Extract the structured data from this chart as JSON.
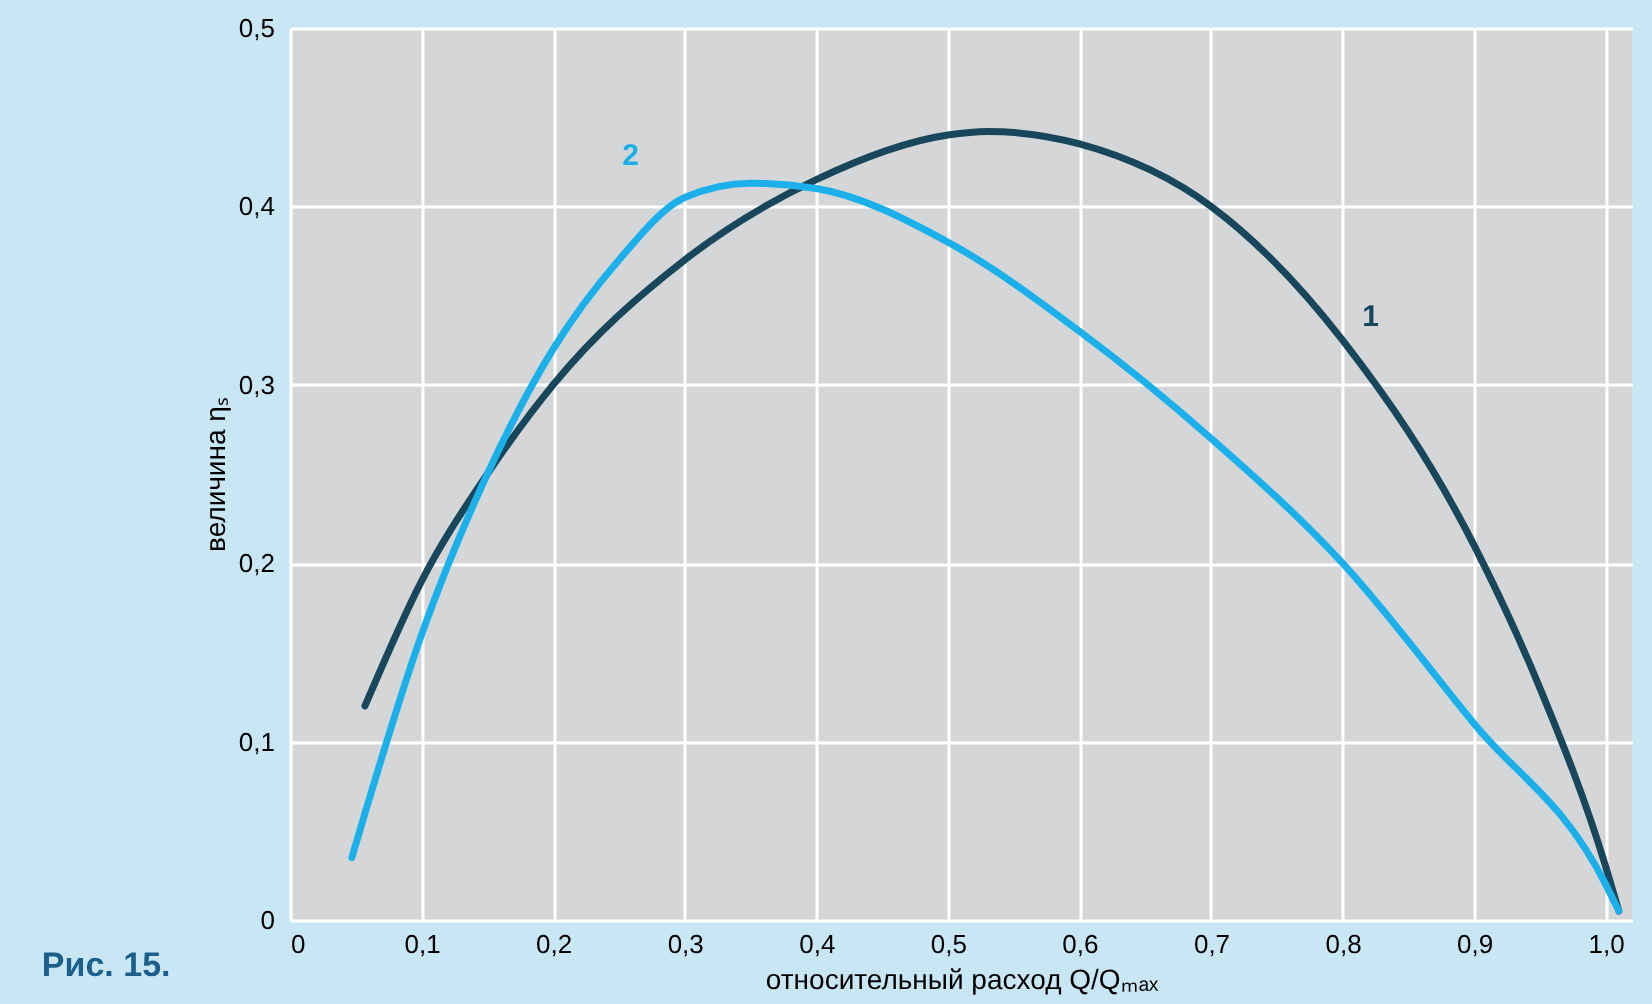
{
  "chart_data": {
    "type": "line",
    "title": "Рис. 15.",
    "xlabel": "относительный расход Q/Qₘₐₓ",
    "ylabel": "величина ηₛ",
    "series": [
      {
        "name": "1",
        "color": "#18475c",
        "x": [
          0.057,
          0.1,
          0.15,
          0.2,
          0.3,
          0.4,
          0.5,
          0.53,
          0.6,
          0.7,
          0.8,
          0.9,
          0.95,
          1.0,
          1.01
        ],
        "values": [
          0.12,
          0.19,
          0.25,
          0.3,
          0.37,
          0.415,
          0.44,
          0.442,
          0.435,
          0.4,
          0.325,
          0.21,
          0.13,
          0.03,
          0.005
        ]
      },
      {
        "name": "2",
        "color": "#1cb0ea",
        "x": [
          0.047,
          0.1,
          0.15,
          0.2,
          0.25,
          0.3,
          0.35,
          0.4,
          0.5,
          0.6,
          0.7,
          0.8,
          0.9,
          1.0,
          1.01
        ],
        "values": [
          0.035,
          0.16,
          0.25,
          0.32,
          0.37,
          0.405,
          0.413,
          0.41,
          0.38,
          0.33,
          0.27,
          0.2,
          0.11,
          0.02,
          0.005
        ]
      }
    ],
    "xlim": [
      0,
      1.02
    ],
    "ylim": [
      0,
      0.5
    ],
    "xticks": [
      0,
      {
        "value": 0.1,
        "label": "0,1"
      },
      {
        "value": 0.2,
        "label": "0,2"
      },
      {
        "value": 0.3,
        "label": "0,3"
      },
      {
        "value": 0.4,
        "label": "0,4"
      },
      {
        "value": 0.5,
        "label": "0,5"
      },
      {
        "value": 0.6,
        "label": "0,6"
      },
      {
        "value": 0.7,
        "label": "0,7"
      },
      {
        "value": 0.8,
        "label": "0,8"
      },
      {
        "value": 0.9,
        "label": "0,9"
      },
      {
        "value": 1.0,
        "label": "1,0"
      }
    ],
    "yticks": [
      0,
      {
        "value": 0.1,
        "label": "0,1"
      },
      {
        "value": 0.2,
        "label": "0,2"
      },
      {
        "value": 0.3,
        "label": "0,3"
      },
      {
        "value": 0.4,
        "label": "0,4"
      },
      {
        "value": 0.5,
        "label": "0,5"
      }
    ],
    "grid": true,
    "marker": "none",
    "line_style": "solid"
  }
}
